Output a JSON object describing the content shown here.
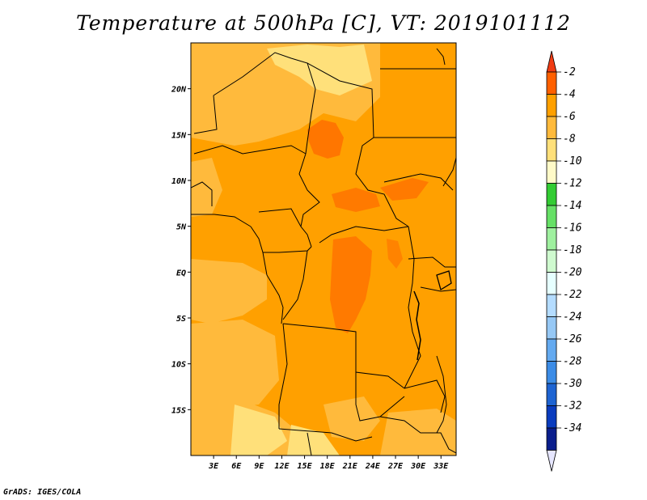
{
  "title": "Temperature at 500hPa [C], VT: 2019101112",
  "credit": "GrADS: IGES/COLA",
  "map": {
    "lat_labels": [
      "20N",
      "15N",
      "10N",
      "5N",
      "EQ",
      "5S",
      "10S",
      "15S"
    ],
    "lat_values": [
      20,
      15,
      10,
      5,
      0,
      -5,
      -10,
      -15
    ],
    "lon_labels": [
      "3E",
      "6E",
      "9E",
      "12E",
      "15E",
      "18E",
      "21E",
      "24E",
      "27E",
      "30E",
      "33E"
    ],
    "lon_values": [
      3,
      6,
      9,
      12,
      15,
      18,
      21,
      24,
      27,
      30,
      33
    ],
    "lon_range": [
      0,
      35
    ],
    "lat_range": [
      -20,
      25
    ],
    "dominant_color": "#ffa000",
    "field_colors": {
      "-2_to_-4": "#ff6000",
      "-4_to_-6": "#ffa000",
      "-6_to_-8": "#ffba3c",
      "-8_to_-10": "#ffe07a"
    }
  },
  "colorbar": {
    "labels": [
      "-2",
      "-4",
      "-6",
      "-8",
      "-10",
      "-12",
      "-14",
      "-16",
      "-18",
      "-20",
      "-22",
      "-24",
      "-26",
      "-28",
      "-30",
      "-32",
      "-34"
    ],
    "colors": [
      "#f03c14",
      "#ff6000",
      "#ffa000",
      "#ffba3c",
      "#ffe07a",
      "#fffac8",
      "#33cc33",
      "#66e066",
      "#9ff09f",
      "#cffacf",
      "#e6ffff",
      "#b4dcff",
      "#96c8f5",
      "#64aaf0",
      "#3c8ce6",
      "#1e64d2",
      "#0a3cbe",
      "#0a1e8c",
      "#e6e6ff"
    ]
  }
}
